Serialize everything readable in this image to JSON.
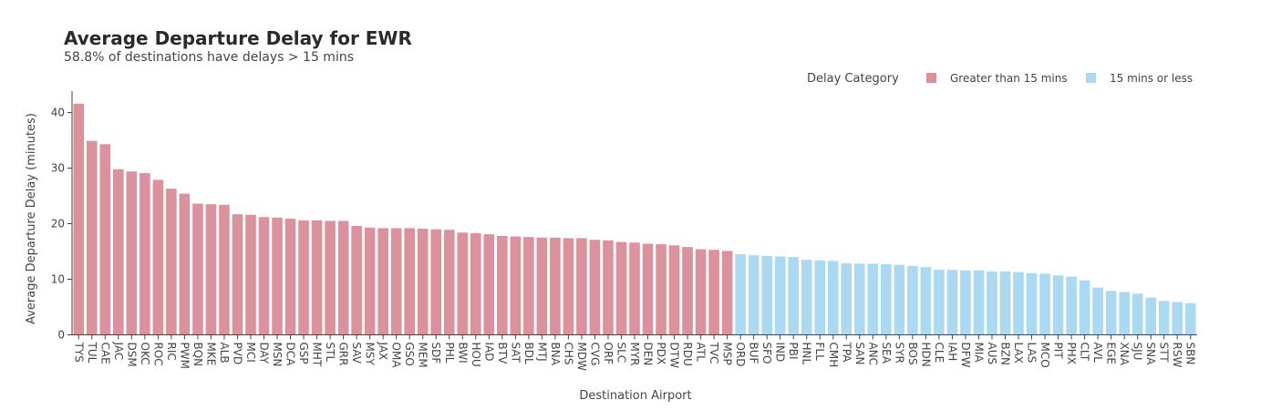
{
  "chart_data": {
    "type": "bar",
    "title": "Average Departure Delay for EWR",
    "subtitle": "58.8% of destinations have delays > 15 mins",
    "xlabel": "Destination Airport",
    "ylabel": "Average Departure Delay (minutes)",
    "ylim": [
      0,
      44
    ],
    "yticks": [
      0,
      10,
      20,
      30,
      40
    ],
    "legend": {
      "title": "Delay Category",
      "placement": "top-right",
      "entries": [
        {
          "label": "Greater than 15 mins",
          "color": "#dc929d"
        },
        {
          "label": "15 mins or less",
          "color": "#aad9f1"
        }
      ]
    },
    "categories": [
      "TYS",
      "TUL",
      "CAE",
      "JAC",
      "DSM",
      "OKC",
      "ROC",
      "RIC",
      "PWM",
      "BQN",
      "MKE",
      "ALB",
      "PVD",
      "MCI",
      "DAY",
      "MSN",
      "DCA",
      "GSP",
      "MHT",
      "STL",
      "GRR",
      "SAV",
      "MSY",
      "JAX",
      "OMA",
      "GSO",
      "MEM",
      "SDF",
      "PHL",
      "BWI",
      "HOU",
      "IAD",
      "BTV",
      "SAT",
      "BDL",
      "MTJ",
      "BNA",
      "CHS",
      "MDW",
      "CVG",
      "ORF",
      "SLC",
      "MYR",
      "DEN",
      "PDX",
      "DTW",
      "RDU",
      "ATL",
      "TVC",
      "MSP",
      "ORD",
      "BUF",
      "SFO",
      "IND",
      "PBI",
      "HNL",
      "FLL",
      "CMH",
      "TPA",
      "SAN",
      "ANC",
      "SEA",
      "SYR",
      "BOS",
      "HDN",
      "CLE",
      "IAH",
      "DFW",
      "MIA",
      "AUS",
      "BZN",
      "LAX",
      "LAS",
      "MCO",
      "PIT",
      "PHX",
      "CLT",
      "AVL",
      "EGE",
      "XNA",
      "SJU",
      "SNA",
      "STT",
      "RSW",
      "SBN"
    ],
    "values": [
      41.6,
      34.9,
      34.3,
      29.8,
      29.4,
      29.1,
      27.9,
      26.3,
      25.4,
      23.6,
      23.5,
      23.4,
      21.7,
      21.6,
      21.2,
      21.1,
      20.9,
      20.6,
      20.6,
      20.5,
      20.5,
      19.6,
      19.3,
      19.2,
      19.2,
      19.2,
      19.1,
      19.0,
      18.9,
      18.4,
      18.3,
      18.1,
      17.8,
      17.7,
      17.6,
      17.5,
      17.5,
      17.4,
      17.4,
      17.1,
      17.0,
      16.7,
      16.6,
      16.4,
      16.3,
      16.1,
      15.8,
      15.4,
      15.3,
      15.1,
      14.5,
      14.3,
      14.2,
      14.1,
      14.0,
      13.5,
      13.4,
      13.3,
      12.9,
      12.8,
      12.8,
      12.7,
      12.6,
      12.4,
      12.2,
      11.7,
      11.7,
      11.6,
      11.6,
      11.4,
      11.4,
      11.3,
      11.1,
      11.0,
      10.7,
      10.5,
      9.8,
      8.5,
      7.9,
      7.7,
      7.4,
      6.7,
      6.1,
      5.9,
      5.7
    ]
  }
}
